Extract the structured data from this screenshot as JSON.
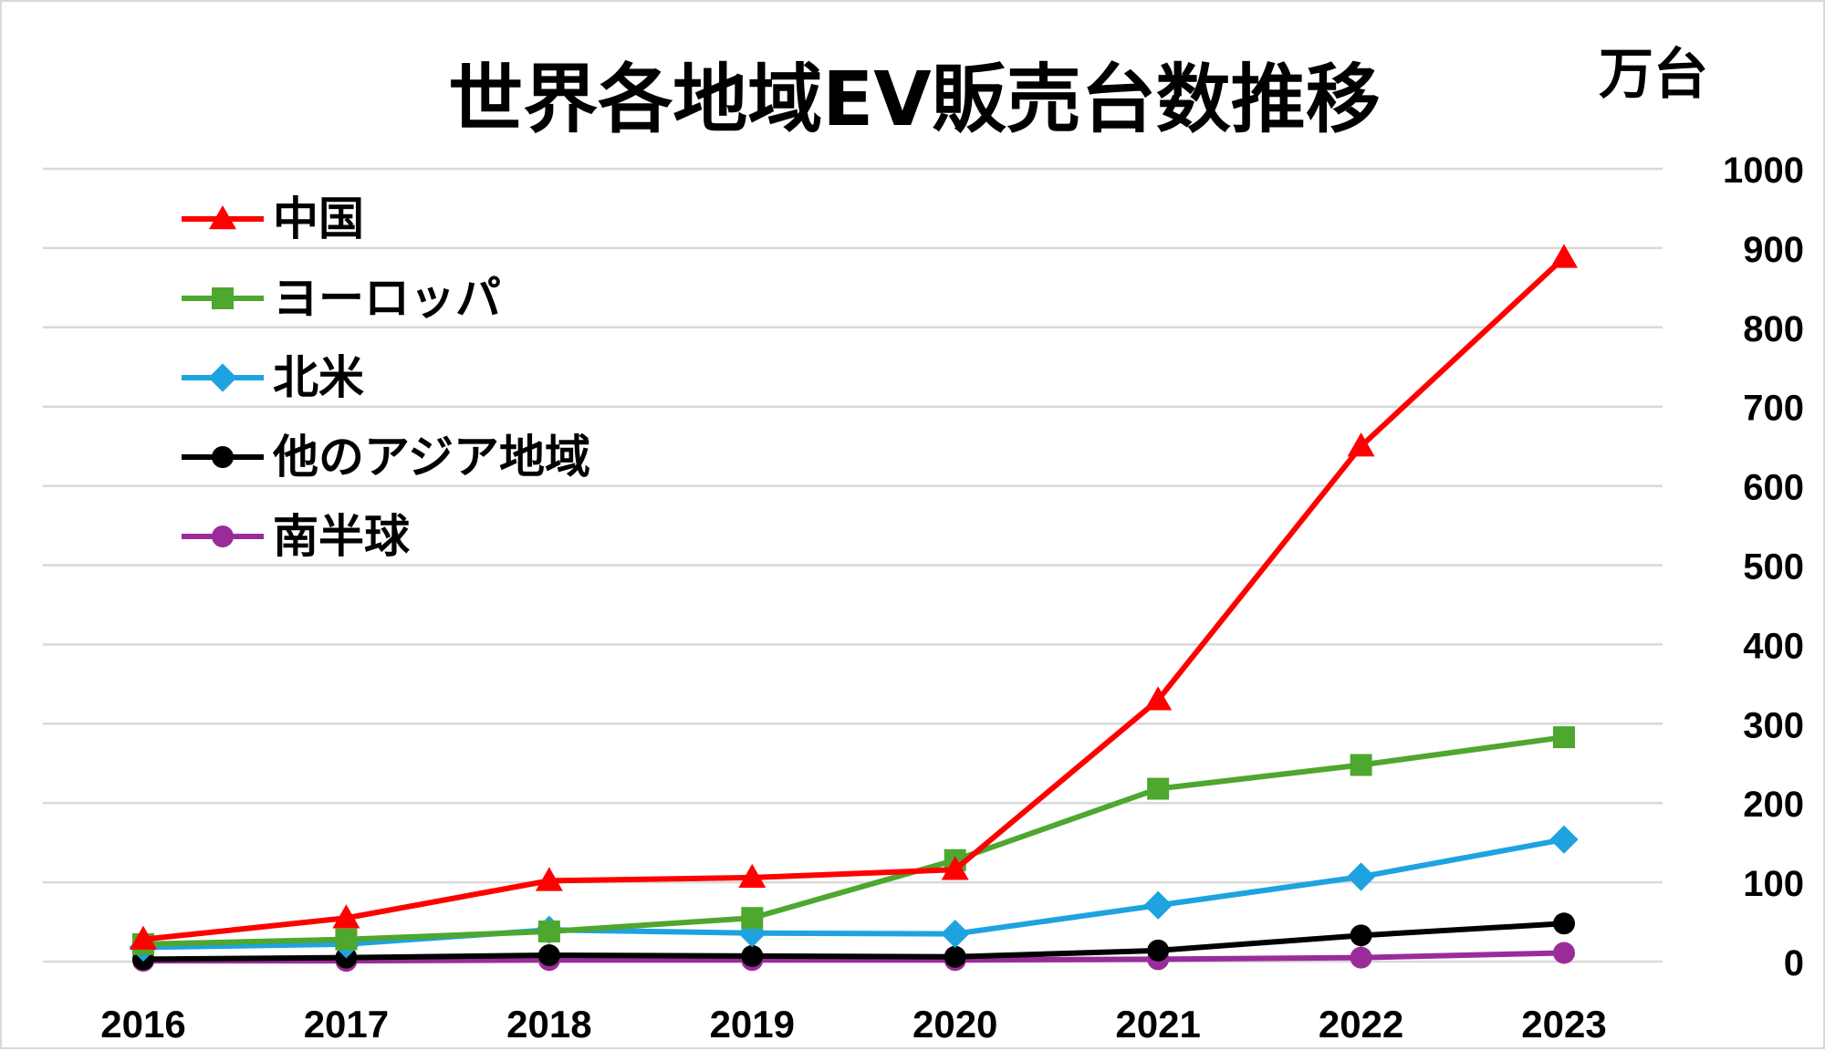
{
  "chart_data": {
    "type": "line",
    "title": "世界各地域EV販売台数推移",
    "ylabel": "万台",
    "xlabel": "",
    "categories": [
      "2016",
      "2017",
      "2018",
      "2019",
      "2020",
      "2021",
      "2022",
      "2023"
    ],
    "ylim": [
      0,
      1000
    ],
    "yticks": [
      "0",
      "100",
      "200",
      "300",
      "400",
      "500",
      "600",
      "700",
      "800",
      "900",
      "1000"
    ],
    "y_axis_side": "right",
    "grid": true,
    "legend_position": "top-left",
    "series": [
      {
        "name": "中国",
        "color": "#ff0000",
        "marker": "triangle",
        "values": [
          28,
          55,
          102,
          106,
          116,
          330,
          650,
          888
        ]
      },
      {
        "name": "ヨーロッパ",
        "color": "#4ea72e",
        "marker": "square",
        "values": [
          22,
          28,
          38,
          55,
          128,
          218,
          248,
          283
        ]
      },
      {
        "name": "北米",
        "color": "#1ea3e0",
        "marker": "diamond",
        "values": [
          18,
          22,
          40,
          36,
          35,
          71,
          107,
          154
        ]
      },
      {
        "name": "他のアジア地域",
        "color": "#000000",
        "marker": "circle",
        "values": [
          3,
          5,
          8,
          7,
          6,
          14,
          33,
          48
        ]
      },
      {
        "name": "南半球",
        "color": "#9a2c9a",
        "marker": "circle",
        "values": [
          1,
          1,
          2,
          2,
          2,
          3,
          5,
          11
        ]
      }
    ]
  }
}
